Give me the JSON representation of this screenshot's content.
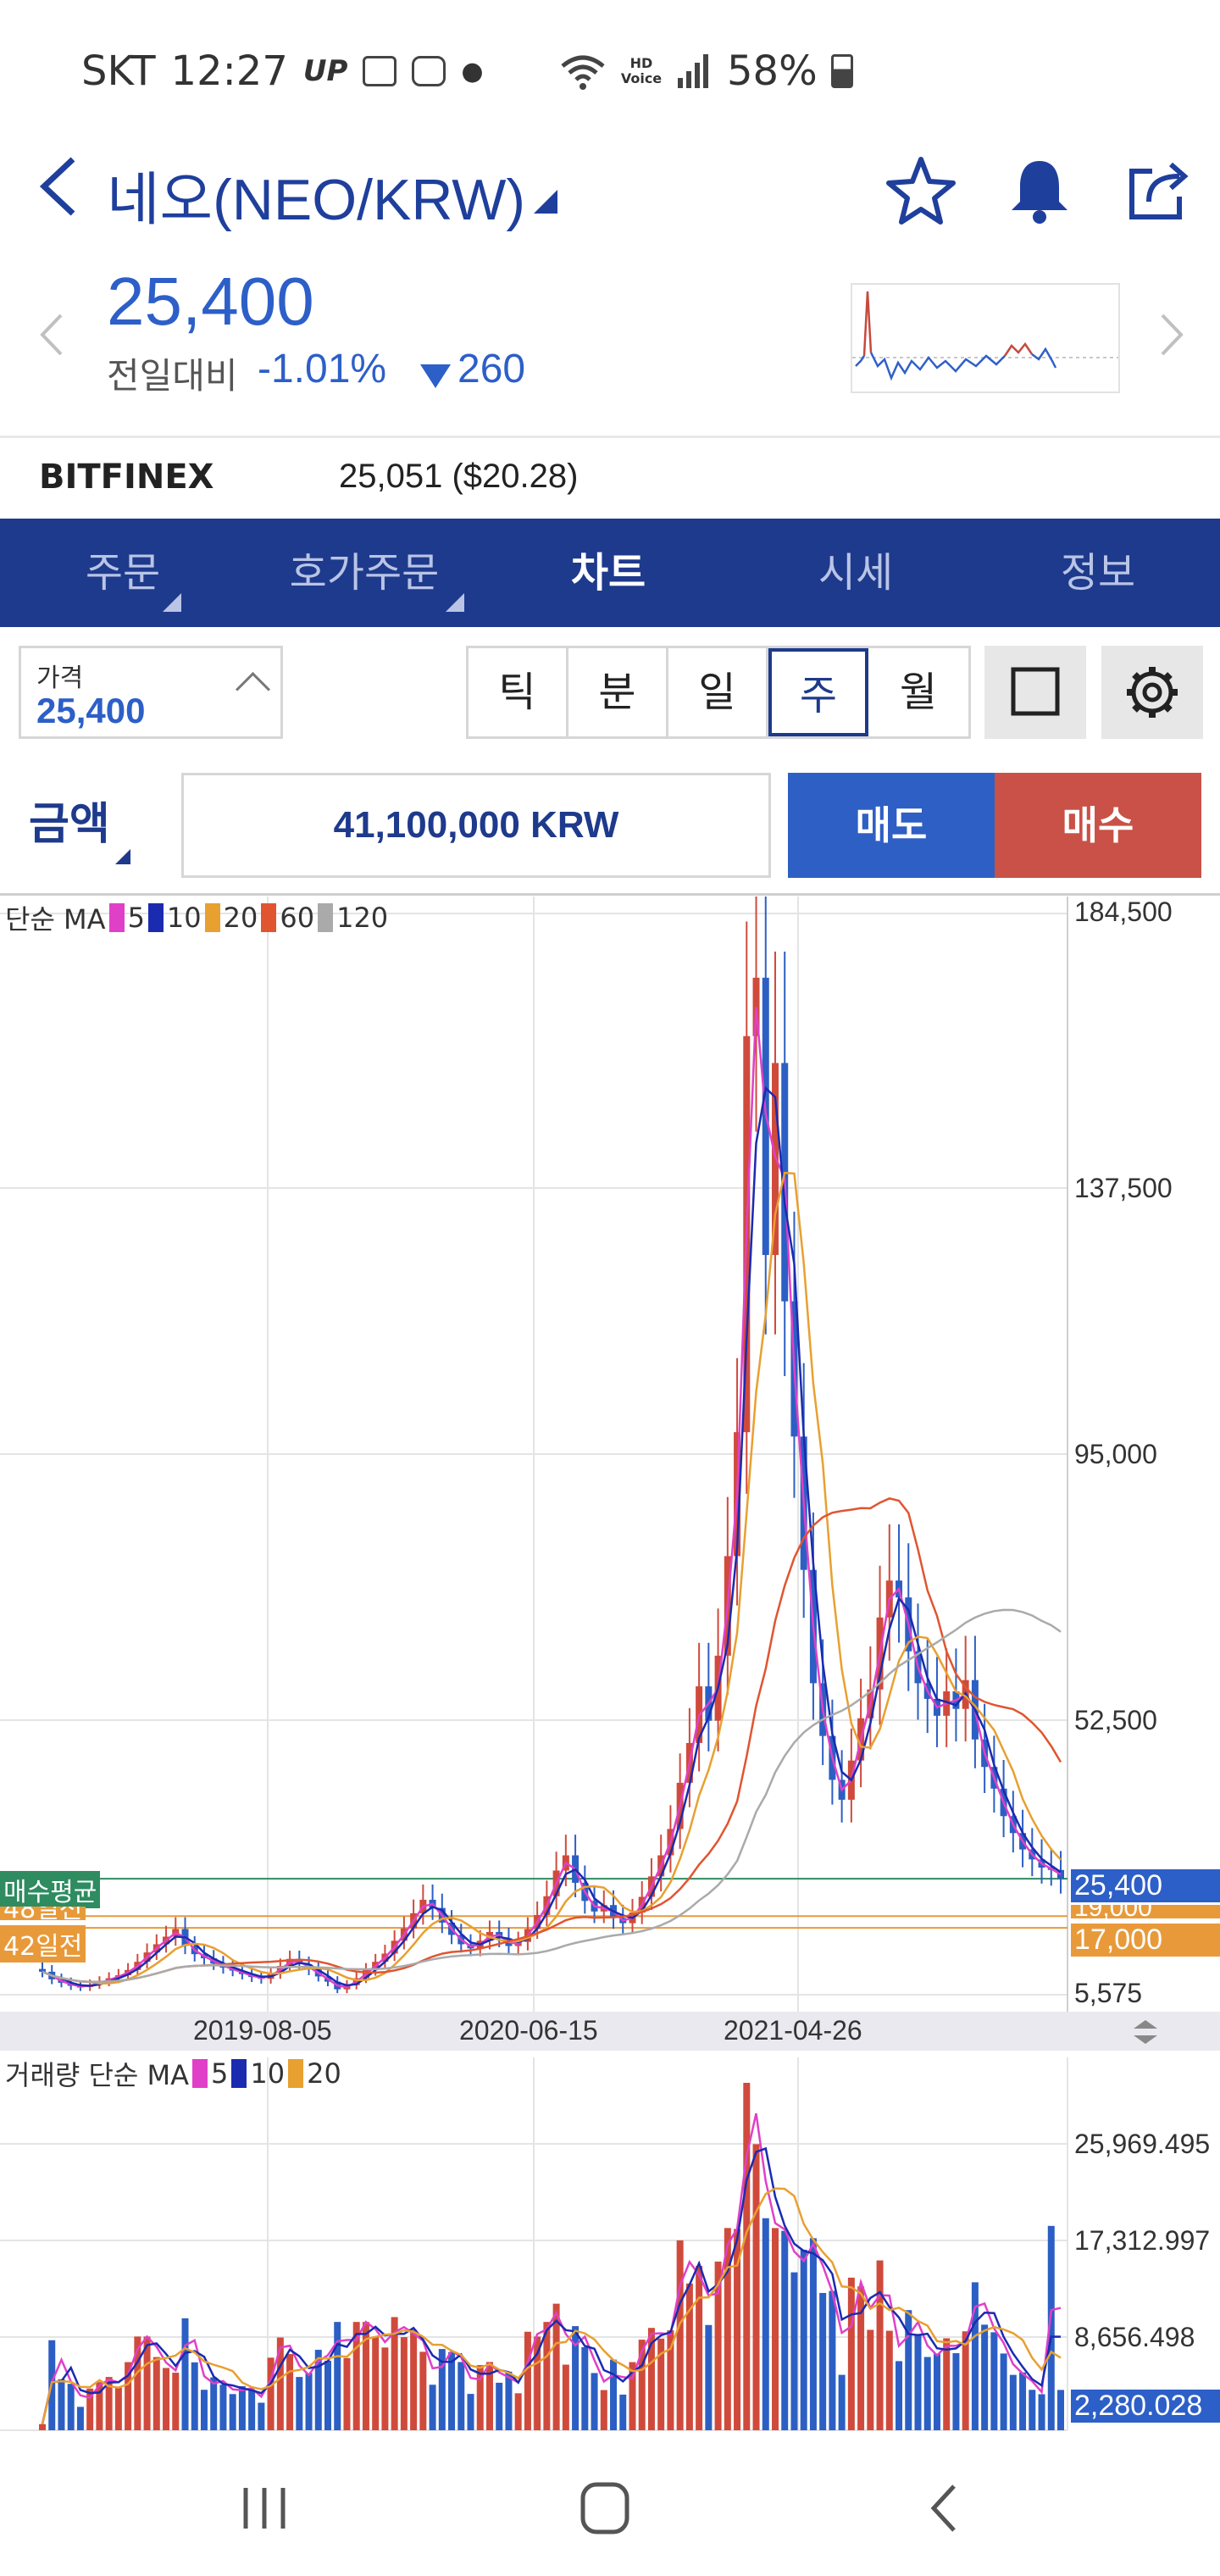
{
  "status_bar": {
    "carrier": "SKT",
    "time": "12:27",
    "hd_voice": "HD Voice",
    "battery": "58%"
  },
  "header": {
    "title": "네오(NEO/KRW)",
    "icons": [
      "back-icon",
      "star-icon",
      "bell-icon",
      "share-icon"
    ]
  },
  "price_block": {
    "price": "25,400",
    "change_label": "전일대비",
    "change_pct": "-1.01%",
    "change_amt": "260",
    "change_color": "#2d5fc8"
  },
  "exchange": {
    "name": "BITFINEX",
    "value": "25,051 ($20.28)"
  },
  "tabs": [
    {
      "label": "주문"
    },
    {
      "label": "호가주문"
    },
    {
      "label": "차트"
    },
    {
      "label": "시세"
    },
    {
      "label": "정보"
    }
  ],
  "controls": {
    "price_label": "가격",
    "price_value": "25,400",
    "periods": [
      "틱",
      "분",
      "일",
      "주",
      "월"
    ],
    "selected_period": "주"
  },
  "order": {
    "amount_label": "금액",
    "amount_value": "41,100,000 KRW",
    "sell_label": "매도",
    "buy_label": "매수",
    "sell_color": "#2e5fc4",
    "buy_color": "#c95147"
  },
  "colors": {
    "accent": "#1e3a8c",
    "up": "#d04a3c",
    "down": "#2c5fc4",
    "ma5": "#e040c8",
    "ma10": "#1a2bb0",
    "ma20": "#e8a030",
    "ma60": "#e05530",
    "ma120": "#aaaaaa"
  },
  "chart_data": [
    {
      "type": "line",
      "title": "",
      "legend_label": "단순 MA",
      "series": [
        {
          "name": "5",
          "color": "#e040c8"
        },
        {
          "name": "10",
          "color": "#1a2bb0"
        },
        {
          "name": "20",
          "color": "#e8a030"
        },
        {
          "name": "60",
          "color": "#e05530"
        },
        {
          "name": "120",
          "color": "#aaaaaa"
        }
      ],
      "y_ticks": [
        "184,500",
        "137,500",
        "95,000",
        "52,500",
        "5,575"
      ],
      "x_ticks": [
        "2019-08-05",
        "2020-06-15",
        "2021-04-26"
      ],
      "ylim": [
        5575,
        184500
      ],
      "current_price_tag": "25,400",
      "secondary_price_tag": "17,000",
      "hidden_tag": "19,000",
      "left_tags": [
        "매수평균",
        "48일전",
        "42일전"
      ],
      "close_series": [
        9500,
        8200,
        7600,
        7100,
        6900,
        7300,
        7800,
        8400,
        8900,
        9800,
        11200,
        12800,
        14200,
        15500,
        16800,
        13900,
        12500,
        11800,
        10900,
        10200,
        9700,
        9100,
        8600,
        8300,
        9200,
        10500,
        11700,
        10800,
        9900,
        8700,
        7800,
        6500,
        7200,
        8400,
        9800,
        11200,
        12600,
        14800,
        16900,
        19500,
        21800,
        20400,
        17900,
        15800,
        14200,
        13500,
        14800,
        16300,
        15200,
        13900,
        14600,
        16800,
        19200,
        22400,
        26800,
        29400,
        24700,
        21600,
        19800,
        20900,
        18700,
        17800,
        19600,
        22300,
        25800,
        29400,
        33900,
        41800,
        48600,
        57900,
        52400,
        62800,
        78700,
        98500,
        163500,
        173500,
        126800,
        158900,
        119400,
        97800,
        76500,
        58400,
        49800,
        42300,
        38900,
        45600,
        52800,
        57400,
        68900,
        74800,
        72100,
        63500,
        58400,
        55900,
        53200,
        57100,
        54300,
        58900,
        49200,
        44500,
        40800,
        36100,
        33200,
        30400,
        28700,
        27300,
        26900,
        25400
      ],
      "volume": {
        "legend_label": "거래량 단순 MA",
        "series": [
          {
            "name": "5",
            "color": "#e040c8"
          },
          {
            "name": "10",
            "color": "#1a2bb0"
          },
          {
            "name": "20",
            "color": "#e8a030"
          }
        ],
        "y_ticks": [
          "25,969.495",
          "17,312.997",
          "8,656.498"
        ],
        "current_tag": "2,280.028",
        "ylim": [
          0,
          34000
        ]
      }
    }
  ]
}
